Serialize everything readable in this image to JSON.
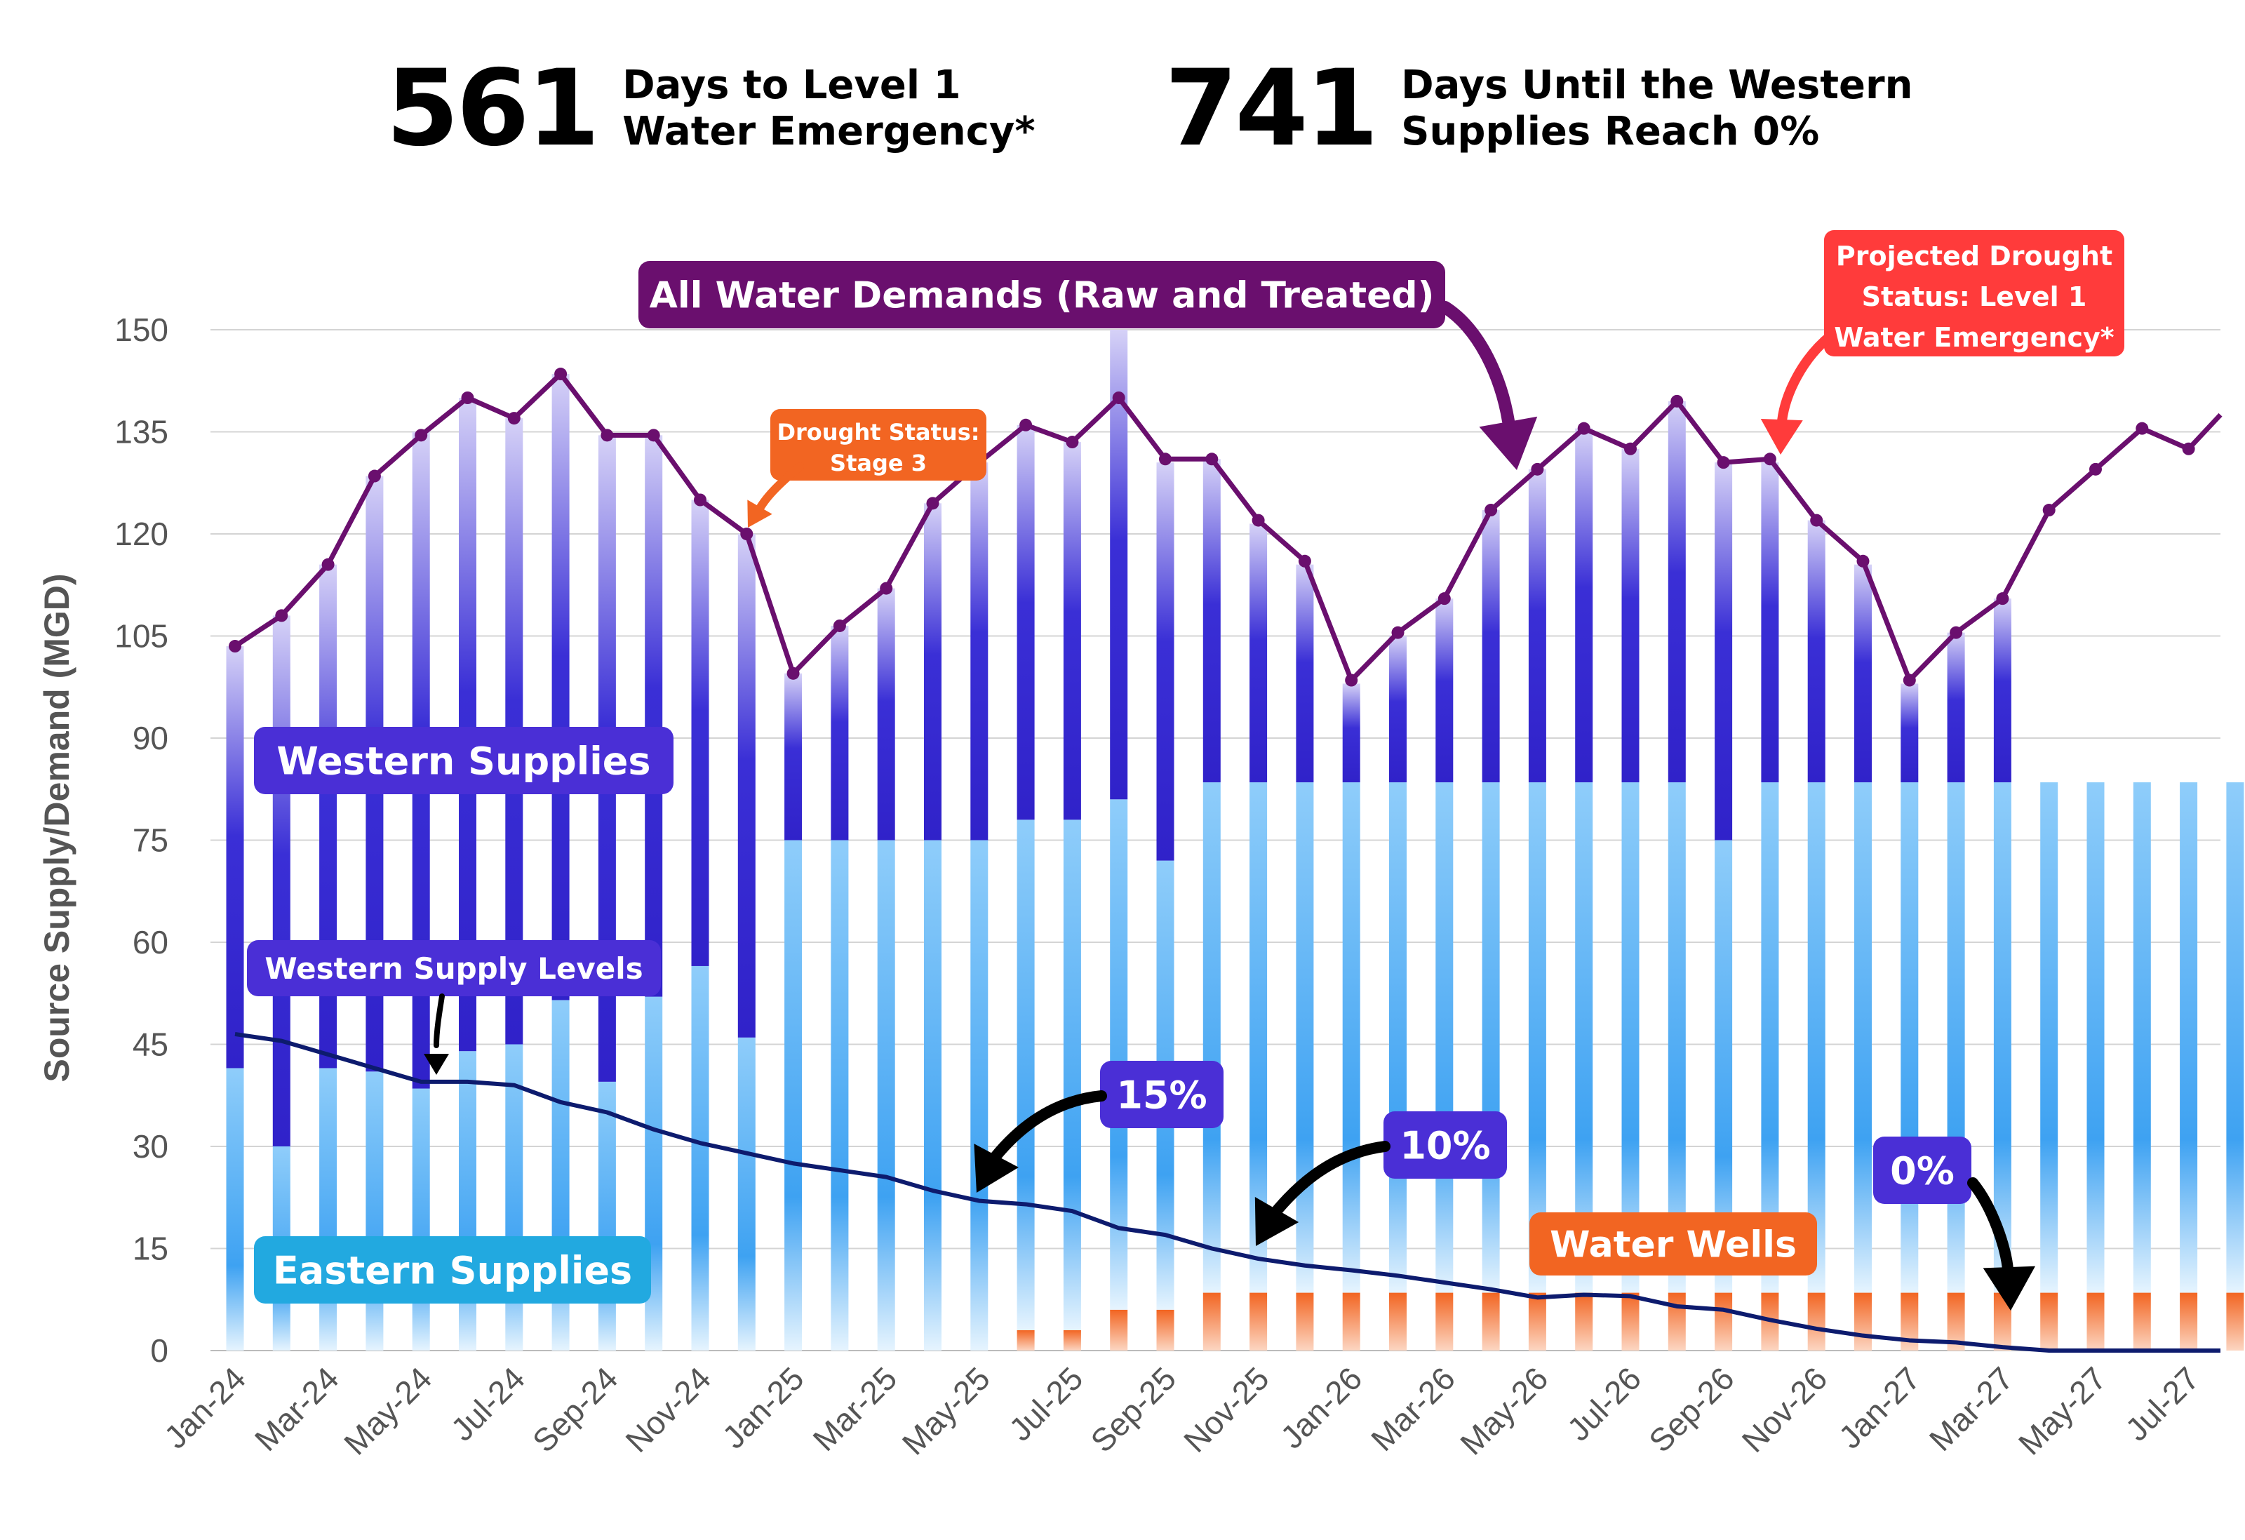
{
  "kpis": [
    {
      "number": "561",
      "line1": "Days to Level 1",
      "line2": "Water Emergency*"
    },
    {
      "number": "741",
      "line1": "Days Until the Western",
      "line2": "Supplies Reach 0%"
    }
  ],
  "colors": {
    "demand_line": "#6a0f6e",
    "western": "#3a2fd6",
    "eastern": "#4aa8f0",
    "wells": "#f26522",
    "level_line": "#0d1b6e",
    "label_purple": "#6a0f6e",
    "label_blue": "#4a2fd6",
    "label_cyan": "#22a9e0",
    "label_orange": "#f26522",
    "label_red": "#ff3b3b"
  },
  "chart_data": {
    "type": "bar",
    "ylabel": "Source Supply/Demand (MGD)",
    "ylim": [
      0,
      150
    ],
    "yticks": [
      0,
      15,
      30,
      45,
      60,
      75,
      90,
      105,
      120,
      135,
      150
    ],
    "grid": true,
    "categories": [
      "Jan-24",
      "Feb-24",
      "Mar-24",
      "Apr-24",
      "May-24",
      "Jun-24",
      "Jul-24",
      "Aug-24",
      "Sep-24",
      "Oct-24",
      "Nov-24",
      "Dec-24",
      "Jan-25",
      "Feb-25",
      "Mar-25",
      "Apr-25",
      "May-25",
      "Jun-25",
      "Jul-25",
      "Aug-25",
      "Sep-25",
      "Oct-25",
      "Nov-25",
      "Dec-25",
      "Jan-26",
      "Feb-26",
      "Mar-26",
      "Apr-26",
      "May-26",
      "Jun-26",
      "Jul-26",
      "Aug-26",
      "Sep-26",
      "Oct-26",
      "Nov-26",
      "Dec-26",
      "Jan-27",
      "Feb-27",
      "Mar-27",
      "Apr-27",
      "May-27",
      "Jun-27",
      "Jul-27",
      "Aug-27"
    ],
    "x_tick_labels": [
      "Jan-24",
      "Mar-24",
      "May-24",
      "Jul-24",
      "Sep-24",
      "Nov-24",
      "Jan-25",
      "Mar-25",
      "May-25",
      "Jul-25",
      "Sep-25",
      "Nov-25",
      "Jan-26",
      "Mar-26",
      "May-26",
      "Jul-26",
      "Sep-26",
      "Nov-26",
      "Jan-27",
      "Mar-27",
      "May-27",
      "Jul-27"
    ],
    "series": [
      {
        "name": "Water Wells",
        "values": [
          0,
          0,
          0,
          0,
          0,
          0,
          0,
          0,
          0,
          0,
          0,
          0,
          0,
          0,
          0,
          0,
          0,
          3,
          3,
          6,
          6,
          8.5,
          8.5,
          8.5,
          8.5,
          8.5,
          8.5,
          8.5,
          8.5,
          8.5,
          8.5,
          8.5,
          8.5,
          8.5,
          8.5,
          8.5,
          8.5,
          8.5,
          8.5,
          8.5,
          8.5,
          8.5,
          8.5,
          8.5
        ]
      },
      {
        "name": "Eastern Supplies",
        "values": [
          41.5,
          30,
          41.5,
          41,
          38.5,
          44,
          45,
          51.5,
          39.5,
          52,
          56.5,
          46,
          75,
          75,
          75,
          75,
          75,
          75,
          75,
          75,
          66,
          75,
          75,
          75,
          75,
          75,
          75,
          75,
          75,
          75,
          75,
          75,
          66.5,
          75,
          75,
          75,
          75,
          75,
          75,
          75,
          75,
          75,
          75,
          75
        ]
      },
      {
        "name": "Western Supplies",
        "values": [
          62,
          78,
          74,
          87.5,
          96.5,
          96,
          92,
          92,
          95,
          82.5,
          68.5,
          74,
          24.5,
          31.5,
          37,
          49.5,
          55.5,
          58,
          55.5,
          69,
          58.5,
          47.5,
          38,
          32,
          14.5,
          21.5,
          27,
          40,
          46,
          52,
          49,
          56,
          55.5,
          47,
          38.5,
          32,
          14.5,
          22,
          27,
          0,
          0,
          0,
          0,
          0
        ]
      },
      {
        "name": "All Water Demands (Raw and Treated)",
        "values": [
          103.5,
          108,
          115.5,
          128.5,
          134.5,
          140,
          137,
          143.5,
          134.5,
          134.5,
          125,
          120,
          99.5,
          106.5,
          112,
          124.5,
          130.5,
          136,
          133.5,
          140,
          131,
          131,
          122,
          116,
          98.5,
          105.5,
          110.5,
          123.5,
          129.5,
          135.5,
          132.5,
          139.5,
          130.5,
          131,
          122,
          116,
          98.5,
          105.5,
          110.5,
          123.5,
          129.5,
          135.5,
          132.5,
          137.5
        ]
      },
      {
        "name": "Western Supply Levels",
        "values": [
          46.5,
          45.5,
          43.5,
          41.5,
          39.5,
          39.5,
          39,
          36.5,
          35,
          32.5,
          30.5,
          29,
          27.5,
          26.5,
          25.5,
          23.5,
          22,
          21.5,
          20.5,
          18,
          17,
          15,
          13.5,
          12.5,
          11.8,
          11,
          10,
          9,
          7.8,
          8.2,
          8,
          6.5,
          6,
          4.5,
          3.2,
          2.2,
          1.5,
          1.2,
          0.5,
          0,
          0,
          0,
          0,
          0
        ]
      }
    ],
    "annotations": [
      {
        "id": "demands",
        "text": "All Water Demands (Raw and Treated)"
      },
      {
        "id": "western",
        "text": "Western Supplies"
      },
      {
        "id": "eastern",
        "text": "Eastern Supplies"
      },
      {
        "id": "levels",
        "text": "Western Supply Levels"
      },
      {
        "id": "wells",
        "text": "Water Wells"
      },
      {
        "id": "pct15",
        "text": "15%"
      },
      {
        "id": "pct10",
        "text": "10%"
      },
      {
        "id": "pct0",
        "text": "0%"
      },
      {
        "id": "stage3",
        "lines": [
          "Drought Status:",
          "Stage 3"
        ]
      },
      {
        "id": "level1",
        "lines": [
          "Projected Drought",
          "Status: Level 1",
          "Water Emergency*"
        ]
      }
    ]
  }
}
